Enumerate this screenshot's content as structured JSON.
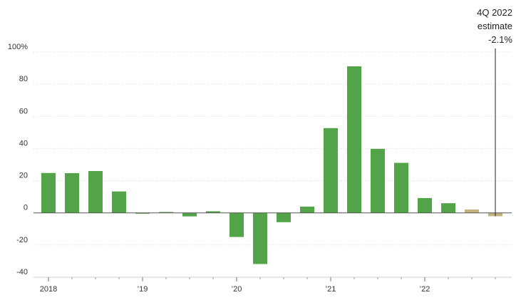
{
  "chart_data": {
    "type": "bar",
    "title": "",
    "xlabel": "",
    "ylabel": "",
    "ylim": [
      -40,
      100
    ],
    "y_ticks": [
      -40,
      -20,
      0,
      20,
      40,
      60,
      80,
      100
    ],
    "y_tick_labels": [
      "-40",
      "-20",
      "0",
      "20",
      "40",
      "60",
      "80",
      "100%"
    ],
    "x_tick_labels": [
      "2018",
      "’19",
      "’20",
      "’21",
      "’22"
    ],
    "grid": true,
    "categories": [
      "1Q 2018",
      "2Q 2018",
      "3Q 2018",
      "4Q 2018",
      "1Q 2019",
      "2Q 2019",
      "3Q 2019",
      "4Q 2019",
      "1Q 2020",
      "2Q 2020",
      "3Q 2020",
      "4Q 2020",
      "1Q 2021",
      "2Q 2021",
      "3Q 2021",
      "4Q 2021",
      "1Q 2022",
      "2Q 2022",
      "3Q 2022",
      "4Q 2022"
    ],
    "values": [
      24.8,
      24.7,
      26.0,
      13.3,
      -0.5,
      0.1,
      -2.2,
      1.0,
      -15.0,
      -31.8,
      -5.8,
      3.9,
      52.7,
      91.1,
      39.8,
      31.1,
      9.2,
      6.0,
      2.1,
      -2.1
    ],
    "bar_status": [
      "actual",
      "actual",
      "actual",
      "actual",
      "actual",
      "actual",
      "actual",
      "actual",
      "actual",
      "actual",
      "actual",
      "actual",
      "actual",
      "actual",
      "actual",
      "actual",
      "actual",
      "actual",
      "estimate",
      "estimate"
    ],
    "colors": {
      "actual": "#53a449",
      "estimate": "#c2b27e"
    },
    "annotation": {
      "lines": [
        "4Q 2022",
        "estimate",
        "-2.1%"
      ],
      "target_index": 19
    }
  }
}
